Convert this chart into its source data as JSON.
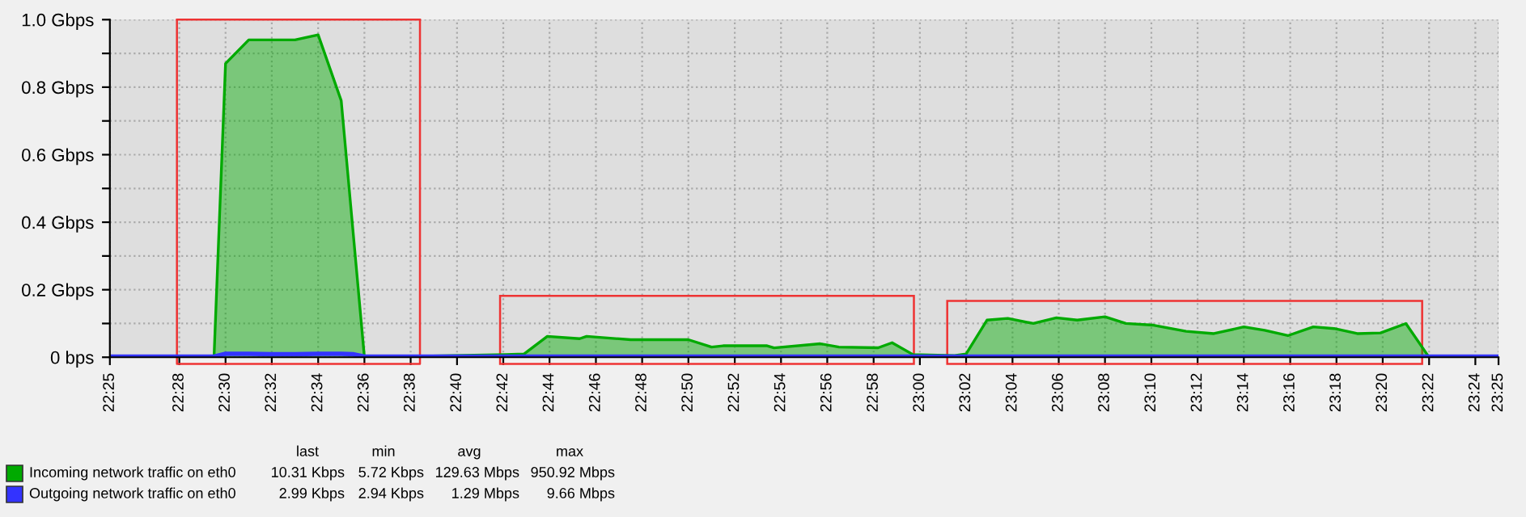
{
  "chart_data": {
    "type": "area",
    "xlim": [
      22.4167,
      23.4167
    ],
    "xticks": [
      {
        "value": 22.4167,
        "label": "22:25"
      },
      {
        "value": 22.4667,
        "label": "22:28"
      },
      {
        "value": 22.5,
        "label": "22:30"
      },
      {
        "value": 22.5333,
        "label": "22:32"
      },
      {
        "value": 22.5667,
        "label": "22:34"
      },
      {
        "value": 22.6,
        "label": "22:36"
      },
      {
        "value": 22.6333,
        "label": "22:38"
      },
      {
        "value": 22.6667,
        "label": "22:40"
      },
      {
        "value": 22.7,
        "label": "22:42"
      },
      {
        "value": 22.7333,
        "label": "22:44"
      },
      {
        "value": 22.7667,
        "label": "22:46"
      },
      {
        "value": 22.8,
        "label": "22:48"
      },
      {
        "value": 22.8333,
        "label": "22:50"
      },
      {
        "value": 22.8667,
        "label": "22:52"
      },
      {
        "value": 22.9,
        "label": "22:54"
      },
      {
        "value": 22.9333,
        "label": "22:56"
      },
      {
        "value": 22.9667,
        "label": "22:58"
      },
      {
        "value": 23.0,
        "label": "23:00"
      },
      {
        "value": 23.0333,
        "label": "23:02"
      },
      {
        "value": 23.0667,
        "label": "23:04"
      },
      {
        "value": 23.1,
        "label": "23:06"
      },
      {
        "value": 23.1333,
        "label": "23:08"
      },
      {
        "value": 23.1667,
        "label": "23:10"
      },
      {
        "value": 23.2,
        "label": "23:12"
      },
      {
        "value": 23.2333,
        "label": "23:14"
      },
      {
        "value": 23.2667,
        "label": "23:16"
      },
      {
        "value": 23.3,
        "label": "23:18"
      },
      {
        "value": 23.3333,
        "label": "23:20"
      },
      {
        "value": 23.3667,
        "label": "23:22"
      },
      {
        "value": 23.4,
        "label": "23:24"
      },
      {
        "value": 23.4167,
        "label": "23:25"
      }
    ],
    "ylim": [
      0,
      1.0
    ],
    "yticks": [
      {
        "value": 0,
        "label": "0 bps"
      },
      {
        "value": 0.1,
        "label": null
      },
      {
        "value": 0.2,
        "label": "0.2 Gbps"
      },
      {
        "value": 0.3,
        "label": null
      },
      {
        "value": 0.4,
        "label": "0.4 Gbps"
      },
      {
        "value": 0.5,
        "label": null
      },
      {
        "value": 0.6,
        "label": "0.6 Gbps"
      },
      {
        "value": 0.7,
        "label": null
      },
      {
        "value": 0.8,
        "label": "0.8 Gbps"
      },
      {
        "value": 0.9,
        "label": null
      },
      {
        "value": 1.0,
        "label": "1.0 Gbps"
      }
    ],
    "grid": true,
    "legend": "bottom left",
    "ref_lines": [
      {
        "axis": "x",
        "value": 22.465,
        "color": "#ee3333",
        "line_style": "solid"
      },
      {
        "axis": "x",
        "value": 22.64,
        "color": "#ee3333",
        "line_style": "solid"
      }
    ],
    "series": [
      {
        "name": "Incoming network traffic on eth0",
        "color": "#00aa00",
        "type": "area",
        "x": [
          22.4167,
          22.4667,
          22.4917,
          22.5,
          22.5167,
          22.5333,
          22.55,
          22.5667,
          22.5833,
          22.6,
          22.7017,
          22.715,
          22.7317,
          22.755,
          22.76,
          22.7917,
          22.8333,
          22.85,
          22.8583,
          22.89,
          22.895,
          22.9283,
          22.9417,
          22.97,
          22.98,
          22.995,
          23.025,
          23.0333,
          23.0483,
          23.0633,
          23.0817,
          23.0983,
          23.1133,
          23.1333,
          23.1483,
          23.1683,
          23.1917,
          23.2117,
          23.2333,
          23.2483,
          23.265,
          23.2833,
          23.2983,
          23.315,
          23.3317,
          23.35,
          23.3667
        ],
        "values": [
          0,
          0,
          0,
          0.87,
          0.94,
          0.94,
          0.94,
          0.955,
          0.76,
          0,
          0.008,
          0.01,
          0.062,
          0.055,
          0.062,
          0.052,
          0.052,
          0.03,
          0.034,
          0.034,
          0.028,
          0.04,
          0.03,
          0.028,
          0.043,
          0.008,
          0.005,
          0.01,
          0.11,
          0.115,
          0.1,
          0.117,
          0.11,
          0.12,
          0.1,
          0.095,
          0.077,
          0.07,
          0.09,
          0.08,
          0.064,
          0.09,
          0.085,
          0.07,
          0.072,
          0.1,
          0
        ]
      },
      {
        "name": "Outgoing network traffic on eth0",
        "color": "#3333ff",
        "type": "line",
        "x": [
          22.4167,
          22.4917,
          22.5,
          22.5167,
          22.5333,
          22.55,
          22.5667,
          22.5833,
          22.5917,
          22.6,
          23.4167
        ],
        "values": [
          0.002,
          0.002,
          0.01,
          0.01,
          0.009,
          0.009,
          0.01,
          0.01,
          0.009,
          0.002,
          0.002
        ]
      }
    ],
    "annotations": [
      "last",
      "min",
      "avg",
      "max",
      "10.31 Kbps",
      "5.72 Kbps",
      "129.63 Mbps",
      "950.92 Mbps",
      "2.99 Kbps",
      "2.94 Kbps",
      "1.29 Mbps",
      "9.66 Mbps"
    ]
  }
}
